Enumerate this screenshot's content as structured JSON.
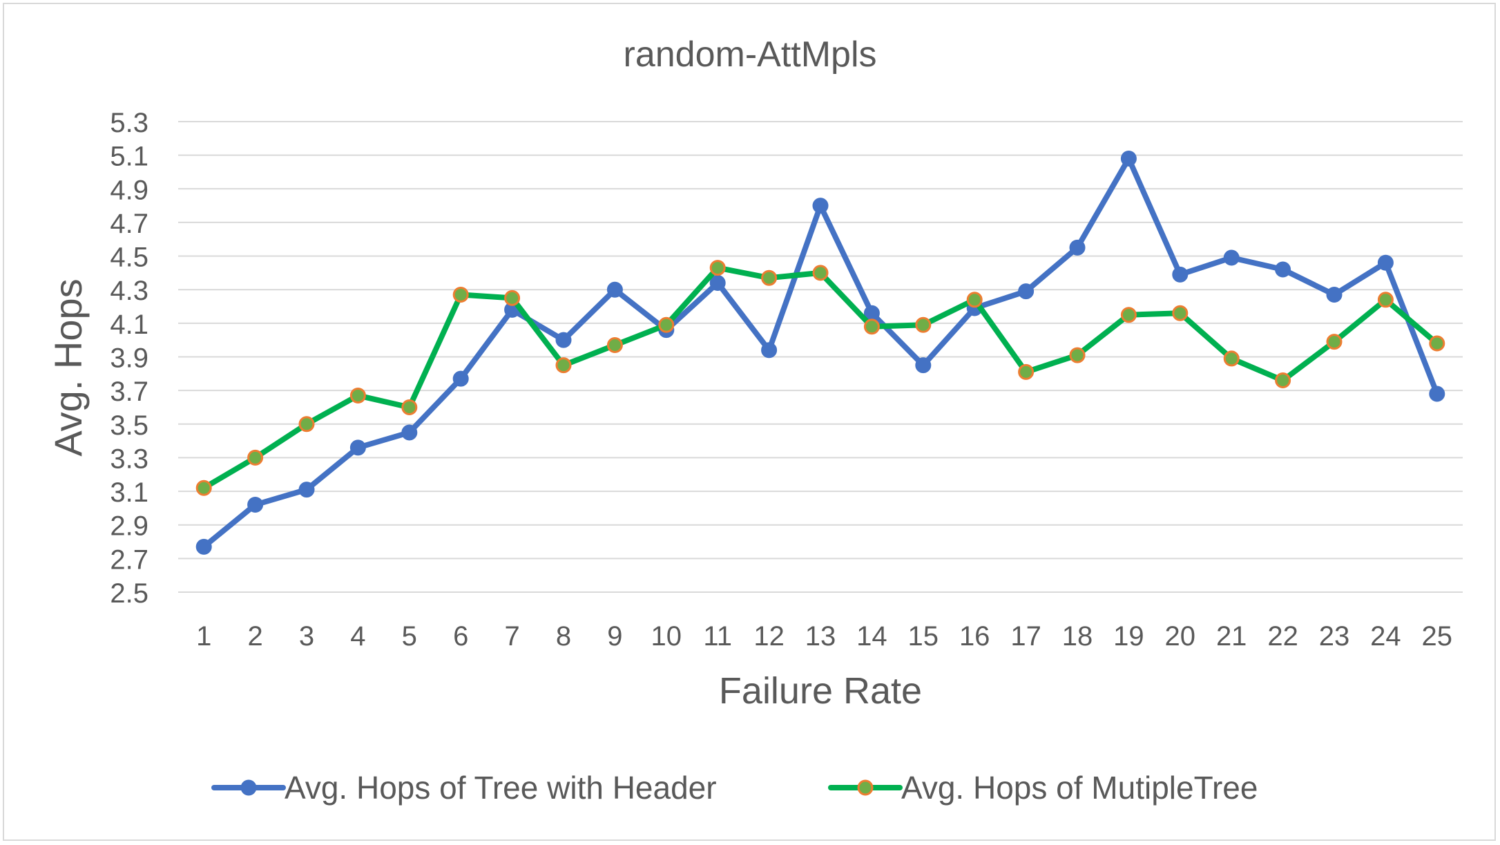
{
  "chart_data": {
    "type": "line",
    "title": "random-AttMpls",
    "xlabel": "Failure Rate",
    "ylabel": "Avg. Hops",
    "ylim": [
      2.5,
      5.3
    ],
    "yticks": [
      "2.5",
      "2.7",
      "2.9",
      "3.1",
      "3.3",
      "3.5",
      "3.7",
      "3.9",
      "4.1",
      "4.3",
      "4.5",
      "4.7",
      "4.9",
      "5.1",
      "5.3"
    ],
    "categories": [
      "1",
      "2",
      "3",
      "4",
      "5",
      "6",
      "7",
      "8",
      "9",
      "10",
      "11",
      "12",
      "13",
      "14",
      "15",
      "16",
      "17",
      "18",
      "19",
      "20",
      "21",
      "22",
      "23",
      "24",
      "25"
    ],
    "grid": true,
    "legend_position": "bottom",
    "series": [
      {
        "name": "Avg. Hops of Tree with Header",
        "color": "#4472c4",
        "marker_fill": "#4472c4",
        "values": [
          2.77,
          3.02,
          3.11,
          3.36,
          3.45,
          3.77,
          4.18,
          4.0,
          4.3,
          4.06,
          4.34,
          3.94,
          4.8,
          4.16,
          3.85,
          4.19,
          4.29,
          4.55,
          5.08,
          4.39,
          4.49,
          4.42,
          4.27,
          4.46,
          3.68
        ]
      },
      {
        "name": "Avg. Hops of MutipleTree",
        "color": "#00b050",
        "marker_fill": "#70ad47",
        "marker_stroke": "#ed7d31",
        "values": [
          3.12,
          3.3,
          3.5,
          3.67,
          3.6,
          4.27,
          4.25,
          3.85,
          3.97,
          4.09,
          4.43,
          4.37,
          4.4,
          4.08,
          4.09,
          4.24,
          3.81,
          3.91,
          4.15,
          4.16,
          3.89,
          3.76,
          3.99,
          4.24,
          3.98
        ]
      }
    ]
  }
}
